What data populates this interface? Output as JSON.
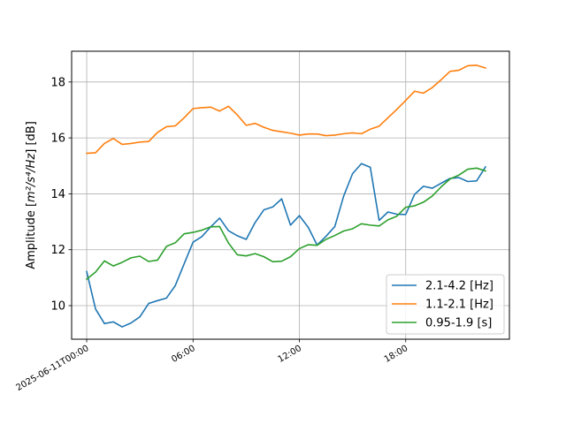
{
  "chart_data": {
    "type": "line",
    "title": "",
    "xlabel": "",
    "ylabel_prefix": "Amplitude [",
    "ylabel_math": "m²/s⁴/Hz",
    "ylabel_suffix": "] [dB]",
    "x_start": "2025-06-11T00:00",
    "x_step_hours": 0.5,
    "xlim_hours": [
      -0.85,
      23.85
    ],
    "ylim": [
      8.8,
      19.1
    ],
    "xticks": [
      {
        "hours": 0,
        "label": "2025-06-11T00:00"
      },
      {
        "hours": 6,
        "label": "06:00"
      },
      {
        "hours": 12,
        "label": "12:00"
      },
      {
        "hours": 18,
        "label": "18:00"
      }
    ],
    "yticks": [
      10,
      12,
      14,
      16,
      18
    ],
    "grid": true,
    "legend_position": "lower-right",
    "series": [
      {
        "name": "2.1-4.2 [Hz]",
        "color": "#1f77b4",
        "values": [
          11.22,
          9.88,
          9.36,
          9.42,
          9.24,
          9.38,
          9.6,
          10.08,
          10.18,
          10.27,
          10.72,
          11.5,
          12.27,
          12.47,
          12.82,
          13.13,
          12.68,
          12.5,
          12.37,
          12.97,
          13.43,
          13.53,
          13.82,
          12.88,
          13.22,
          12.8,
          12.17,
          12.48,
          12.83,
          13.92,
          14.72,
          15.08,
          14.95,
          13.05,
          13.35,
          13.27,
          13.26,
          13.98,
          14.27,
          14.2,
          14.38,
          14.55,
          14.58,
          14.44,
          14.46,
          14.96
        ]
      },
      {
        "name": "1.1-2.1 [Hz]",
        "color": "#ff7f0e",
        "values": [
          15.45,
          15.47,
          15.8,
          15.98,
          15.77,
          15.8,
          15.85,
          15.87,
          16.2,
          16.4,
          16.43,
          16.72,
          17.05,
          17.08,
          17.1,
          16.96,
          17.13,
          16.82,
          16.45,
          16.52,
          16.38,
          16.27,
          16.22,
          16.17,
          16.1,
          16.14,
          16.14,
          16.08,
          16.1,
          16.15,
          16.18,
          16.15,
          16.31,
          16.42,
          16.72,
          17.02,
          17.34,
          17.67,
          17.6,
          17.8,
          18.08,
          18.38,
          18.42,
          18.58,
          18.6,
          18.5
        ]
      },
      {
        "name": "0.95-1.9 [s]",
        "color": "#2ca02c",
        "values": [
          10.95,
          11.2,
          11.6,
          11.42,
          11.55,
          11.71,
          11.77,
          11.58,
          11.63,
          12.12,
          12.25,
          12.57,
          12.62,
          12.7,
          12.82,
          12.83,
          12.24,
          11.82,
          11.78,
          11.86,
          11.75,
          11.57,
          11.59,
          11.75,
          12.04,
          12.18,
          12.16,
          12.37,
          12.51,
          12.67,
          12.75,
          12.93,
          12.88,
          12.85,
          13.07,
          13.2,
          13.52,
          13.57,
          13.7,
          13.92,
          14.25,
          14.53,
          14.67,
          14.88,
          14.92,
          14.82
        ]
      }
    ]
  }
}
